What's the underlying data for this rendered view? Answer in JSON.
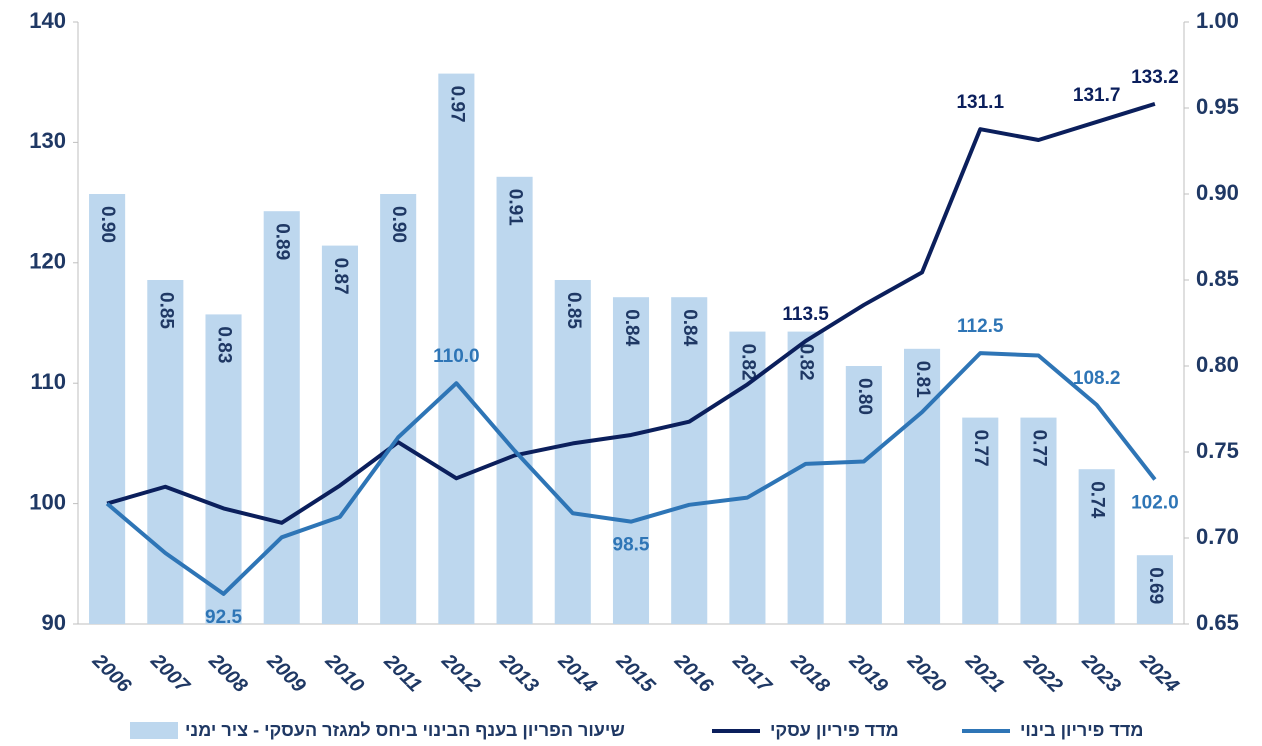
{
  "chart_data": {
    "type": "bar-line",
    "categories": [
      "2006",
      "2007",
      "2008",
      "2009",
      "2010",
      "2011",
      "2012",
      "2013",
      "2014",
      "2015",
      "2016",
      "2017",
      "2018",
      "2019",
      "2020",
      "2021",
      "2022",
      "2023",
      "2024"
    ],
    "series": [
      {
        "name": "שיעור הפריון בענף הבינוי ביחס למגזר העסקי - ציר ימני",
        "type": "bar",
        "axis": "y2",
        "color": "#bdd7ee",
        "values": [
          0.9,
          0.85,
          0.83,
          0.89,
          0.87,
          0.9,
          0.97,
          0.91,
          0.85,
          0.84,
          0.84,
          0.82,
          0.82,
          0.8,
          0.81,
          0.77,
          0.77,
          0.74,
          0.69
        ],
        "value_labels": [
          "0.90",
          "0.85",
          "0.83",
          "0.89",
          "0.87",
          "0.90",
          "0.97",
          "0.91",
          "0.85",
          "0.84",
          "0.84",
          "0.82",
          "0.82",
          "0.80",
          "0.81",
          "0.77",
          "0.77",
          "0.74",
          "0.69"
        ]
      },
      {
        "name": "מדד פיריון עסקי",
        "type": "line",
        "axis": "y",
        "color": "#0b1f5c",
        "values": [
          100,
          101.4,
          99.6,
          98.4,
          101.5,
          105.1,
          102.1,
          104.0,
          105.0,
          105.7,
          106.8,
          109.9,
          113.5,
          116.5,
          119.2,
          131.1,
          130.2,
          131.7,
          133.2
        ],
        "value_labels": [
          null,
          null,
          null,
          null,
          null,
          null,
          null,
          null,
          null,
          null,
          null,
          null,
          "113.5",
          null,
          null,
          "131.1",
          null,
          "131.7",
          "133.2"
        ]
      },
      {
        "name": "מדד פיריון בינוי",
        "type": "line",
        "axis": "y",
        "color": "#2e75b6",
        "values": [
          100,
          95.9,
          92.5,
          97.2,
          98.9,
          105.5,
          110.0,
          104.4,
          99.2,
          98.5,
          99.9,
          100.5,
          103.3,
          103.5,
          107.6,
          112.5,
          112.3,
          108.2,
          102.0
        ],
        "value_labels": [
          null,
          null,
          "92.5",
          null,
          null,
          null,
          "110.0",
          null,
          null,
          "98.5",
          null,
          null,
          null,
          null,
          null,
          "112.5",
          null,
          "108.2",
          "102.0"
        ]
      }
    ],
    "ylim": [
      90,
      140
    ],
    "yticks": [
      90,
      100,
      110,
      120,
      130,
      140
    ],
    "y2lim": [
      0.65,
      1.0
    ],
    "y2ticks": [
      0.65,
      {
        "value": 0.7,
        "label": "0.70"
      },
      0.75,
      {
        "value": 0.8,
        "label": "0.80"
      },
      0.85,
      {
        "value": 0.9,
        "label": "0.90"
      },
      0.95,
      {
        "value": 1,
        "label": "1.00"
      }
    ],
    "legend": "bottom"
  }
}
